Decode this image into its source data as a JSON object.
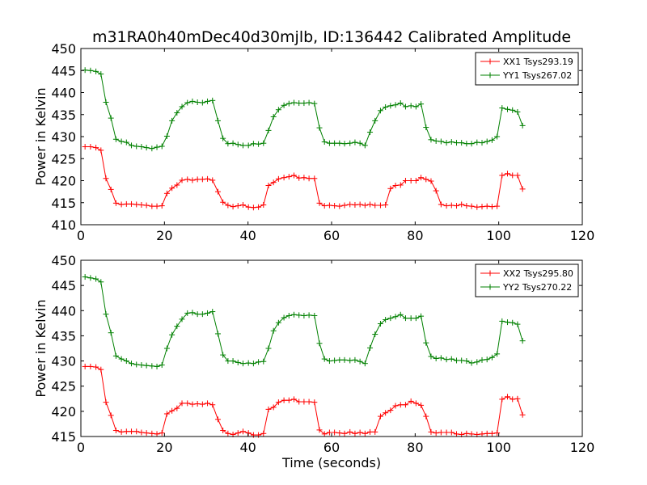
{
  "figure": {
    "title": "m31RA0h40mDec40d30mjlb, ID:136442 Calibrated Amplitude"
  },
  "chart_data": [
    {
      "type": "line",
      "title": "m31RA0h40mDec40d30mjlb, ID:136442 Calibrated Amplitude",
      "xlabel": "",
      "ylabel": "Power in Kelvin",
      "xlim": [
        0,
        120
      ],
      "ylim": [
        410,
        450
      ],
      "xticks": [
        0,
        20,
        40,
        60,
        80,
        100,
        120
      ],
      "yticks": [
        410,
        415,
        420,
        425,
        430,
        435,
        440,
        445,
        450
      ],
      "grid": false,
      "legend_position": "top-right",
      "x": [
        1,
        2.3,
        3.6,
        4.8,
        6,
        7.2,
        8.4,
        9.7,
        10.9,
        12.1,
        13.3,
        14.5,
        15.7,
        17,
        18.2,
        19.4,
        20.6,
        21.8,
        23,
        24.2,
        25.5,
        26.7,
        27.9,
        29.1,
        30.3,
        31.5,
        32.8,
        34,
        35.2,
        36.4,
        37.6,
        38.8,
        40.1,
        41.3,
        42.5,
        43.7,
        44.9,
        46.1,
        47.3,
        48.6,
        49.8,
        51,
        52.2,
        53.4,
        54.6,
        55.9,
        57.1,
        58.3,
        59.5,
        60.7,
        61.9,
        63.1,
        64.4,
        65.6,
        66.8,
        68,
        69.2,
        70.4,
        71.7,
        72.9,
        74.1,
        75.3,
        76.5,
        77.7,
        79,
        80.2,
        81.4,
        82.6,
        83.8,
        85,
        86.2,
        87.5,
        88.7,
        89.9,
        91.1,
        92.3,
        93.5,
        94.8,
        96,
        97.2,
        98.4,
        99.6,
        100.8,
        102.1,
        103.3,
        104.5,
        105.7
      ],
      "series": [
        {
          "name": "XX1 Tsys293.19",
          "color": "#ff0000",
          "values": [
            427.7,
            427.7,
            427.5,
            426.9,
            420.5,
            418.0,
            414.9,
            414.6,
            414.7,
            414.7,
            414.6,
            414.5,
            414.4,
            414.2,
            414.2,
            414.3,
            417.1,
            418.3,
            419.0,
            420.1,
            420.3,
            420.1,
            420.3,
            420.3,
            420.4,
            420.1,
            417.5,
            415.1,
            414.4,
            414.1,
            414.3,
            414.5,
            414.0,
            413.9,
            414.0,
            414.5,
            418.9,
            419.6,
            420.4,
            420.7,
            420.9,
            421.2,
            420.6,
            420.7,
            420.5,
            420.5,
            414.9,
            414.3,
            414.4,
            414.3,
            414.2,
            414.4,
            414.6,
            414.5,
            414.6,
            414.4,
            414.6,
            414.4,
            414.4,
            414.5,
            418.2,
            418.9,
            419.0,
            420.0,
            420.0,
            420.0,
            420.7,
            420.3,
            419.9,
            417.7,
            414.6,
            414.3,
            414.4,
            414.3,
            414.6,
            414.3,
            414.2,
            414.0,
            414.1,
            414.2,
            414.1,
            414.2,
            421.2,
            421.6,
            421.2,
            421.2,
            418.1
          ]
        },
        {
          "name": "YY1 Tsys267.02",
          "color": "#008000",
          "values": [
            445.1,
            445.0,
            444.8,
            444.2,
            437.8,
            434.2,
            429.4,
            428.9,
            428.7,
            428.0,
            427.8,
            427.7,
            427.5,
            427.3,
            427.6,
            427.8,
            430.1,
            433.6,
            435.4,
            436.8,
            437.7,
            438.0,
            437.8,
            437.7,
            438.0,
            438.2,
            433.6,
            429.6,
            428.4,
            428.5,
            428.2,
            428.0,
            428.0,
            428.4,
            428.3,
            428.5,
            431.4,
            434.5,
            436.1,
            437.1,
            437.5,
            437.7,
            437.6,
            437.6,
            437.7,
            437.5,
            432.0,
            428.8,
            428.5,
            428.5,
            428.5,
            428.4,
            428.5,
            428.7,
            428.5,
            428.0,
            431.0,
            433.6,
            435.9,
            436.7,
            437.0,
            437.2,
            437.6,
            436.8,
            437.0,
            436.8,
            437.4,
            432.1,
            429.3,
            429.0,
            428.9,
            428.6,
            428.8,
            428.6,
            428.6,
            428.4,
            428.4,
            428.7,
            428.6,
            428.9,
            429.2,
            430.0,
            436.5,
            436.2,
            436.0,
            435.6,
            432.5
          ]
        }
      ]
    },
    {
      "type": "line",
      "title": "",
      "xlabel": "Time (seconds)",
      "ylabel": "Power in Kelvin",
      "xlim": [
        0,
        120
      ],
      "ylim": [
        415,
        450
      ],
      "xticks": [
        0,
        20,
        40,
        60,
        80,
        100,
        120
      ],
      "yticks": [
        415,
        420,
        425,
        430,
        435,
        440,
        445,
        450
      ],
      "grid": false,
      "legend_position": "top-right",
      "x": [
        1,
        2.3,
        3.6,
        4.8,
        6,
        7.2,
        8.4,
        9.7,
        10.9,
        12.1,
        13.3,
        14.5,
        15.7,
        17,
        18.2,
        19.4,
        20.6,
        21.8,
        23,
        24.2,
        25.5,
        26.7,
        27.9,
        29.1,
        30.3,
        31.5,
        32.8,
        34,
        35.2,
        36.4,
        37.6,
        38.8,
        40.1,
        41.3,
        42.5,
        43.7,
        44.9,
        46.1,
        47.3,
        48.6,
        49.8,
        51,
        52.2,
        53.4,
        54.6,
        55.9,
        57.1,
        58.3,
        59.5,
        60.7,
        61.9,
        63.1,
        64.4,
        65.6,
        66.8,
        68,
        69.2,
        70.4,
        71.7,
        72.9,
        74.1,
        75.3,
        76.5,
        77.7,
        79,
        80.2,
        81.4,
        82.6,
        83.8,
        85,
        86.2,
        87.5,
        88.7,
        89.9,
        91.1,
        92.3,
        93.5,
        94.8,
        96,
        97.2,
        98.4,
        99.6,
        100.8,
        102.1,
        103.3,
        104.5,
        105.7
      ],
      "series": [
        {
          "name": "XX2 Tsys295.80",
          "color": "#ff0000",
          "values": [
            428.9,
            428.9,
            428.8,
            428.3,
            421.8,
            419.2,
            416.2,
            415.9,
            416.0,
            416.0,
            416.0,
            415.8,
            415.7,
            415.6,
            415.5,
            415.7,
            419.5,
            420.1,
            420.6,
            421.6,
            421.6,
            421.4,
            421.5,
            421.4,
            421.6,
            421.3,
            418.4,
            416.2,
            415.6,
            415.4,
            415.7,
            416.0,
            415.7,
            415.3,
            415.3,
            415.6,
            420.4,
            420.8,
            421.8,
            422.2,
            422.2,
            422.4,
            421.9,
            421.9,
            421.9,
            421.8,
            416.3,
            415.5,
            415.8,
            415.8,
            415.7,
            415.6,
            415.9,
            415.6,
            415.8,
            415.6,
            415.9,
            415.9,
            419.0,
            419.7,
            420.2,
            421.1,
            421.3,
            421.3,
            422.0,
            421.6,
            421.2,
            419.0,
            415.9,
            415.7,
            415.8,
            415.8,
            415.8,
            415.5,
            415.4,
            415.6,
            415.5,
            415.4,
            415.5,
            415.6,
            415.6,
            415.7,
            422.4,
            422.9,
            422.4,
            422.5,
            419.3
          ]
        },
        {
          "name": "YY2 Tsys270.22",
          "color": "#008000",
          "values": [
            446.7,
            446.5,
            446.3,
            445.7,
            439.3,
            435.6,
            431.0,
            430.4,
            430.0,
            429.5,
            429.3,
            429.2,
            429.1,
            429.0,
            428.9,
            429.2,
            432.5,
            435.2,
            436.9,
            438.3,
            439.5,
            439.6,
            439.3,
            439.3,
            439.5,
            439.8,
            435.4,
            431.2,
            430.0,
            430.0,
            429.7,
            429.5,
            429.6,
            429.5,
            429.8,
            429.9,
            432.5,
            436.0,
            437.6,
            438.6,
            439.0,
            439.2,
            439.1,
            439.0,
            439.1,
            439.0,
            433.5,
            430.4,
            430.0,
            430.1,
            430.2,
            430.2,
            430.1,
            430.2,
            429.9,
            429.5,
            432.6,
            435.3,
            437.4,
            438.2,
            438.5,
            438.8,
            439.2,
            438.5,
            438.5,
            438.5,
            438.9,
            433.6,
            430.9,
            430.5,
            430.6,
            430.3,
            430.4,
            430.1,
            430.1,
            430.0,
            429.6,
            429.8,
            430.2,
            430.3,
            430.7,
            431.4,
            437.9,
            437.7,
            437.6,
            437.3,
            434.0
          ]
        }
      ]
    }
  ]
}
